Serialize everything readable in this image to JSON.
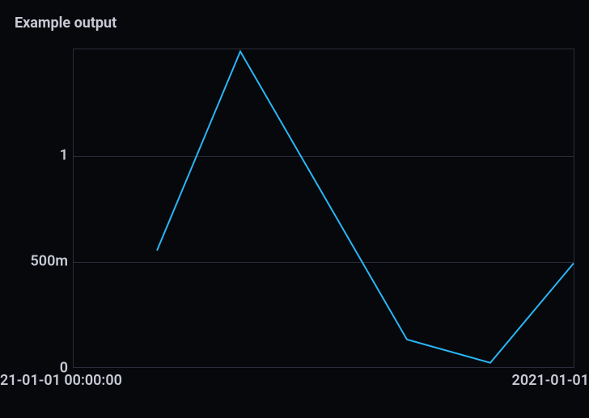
{
  "chart": {
    "type": "line",
    "title": "Example output",
    "title_fontsize": 18,
    "title_color": "#c7c9d4",
    "background_color": "#07080c",
    "plot_border_color": "#2a2d39",
    "grid_color": "#2a2d39",
    "line_color": "#29b6f6",
    "line_width": 2,
    "tick_label_color": "#c7c9d4",
    "tick_label_fontsize": 18,
    "y_axis": {
      "min": 0,
      "max": 1.5,
      "ticks": [
        {
          "value": 0,
          "label": "0"
        },
        {
          "value": 0.5,
          "label": "500m"
        },
        {
          "value": 1,
          "label": "1"
        }
      ]
    },
    "x_axis": {
      "min": 0,
      "max": 6,
      "tick_left": "21-01-01 00:00:00",
      "tick_right": "2021-01-01"
    },
    "series": [
      {
        "x": 1,
        "y": 0.55
      },
      {
        "x": 2,
        "y": 1.49
      },
      {
        "x": 4,
        "y": 0.13
      },
      {
        "x": 5,
        "y": 0.02
      },
      {
        "x": 6,
        "y": 0.49
      }
    ]
  }
}
